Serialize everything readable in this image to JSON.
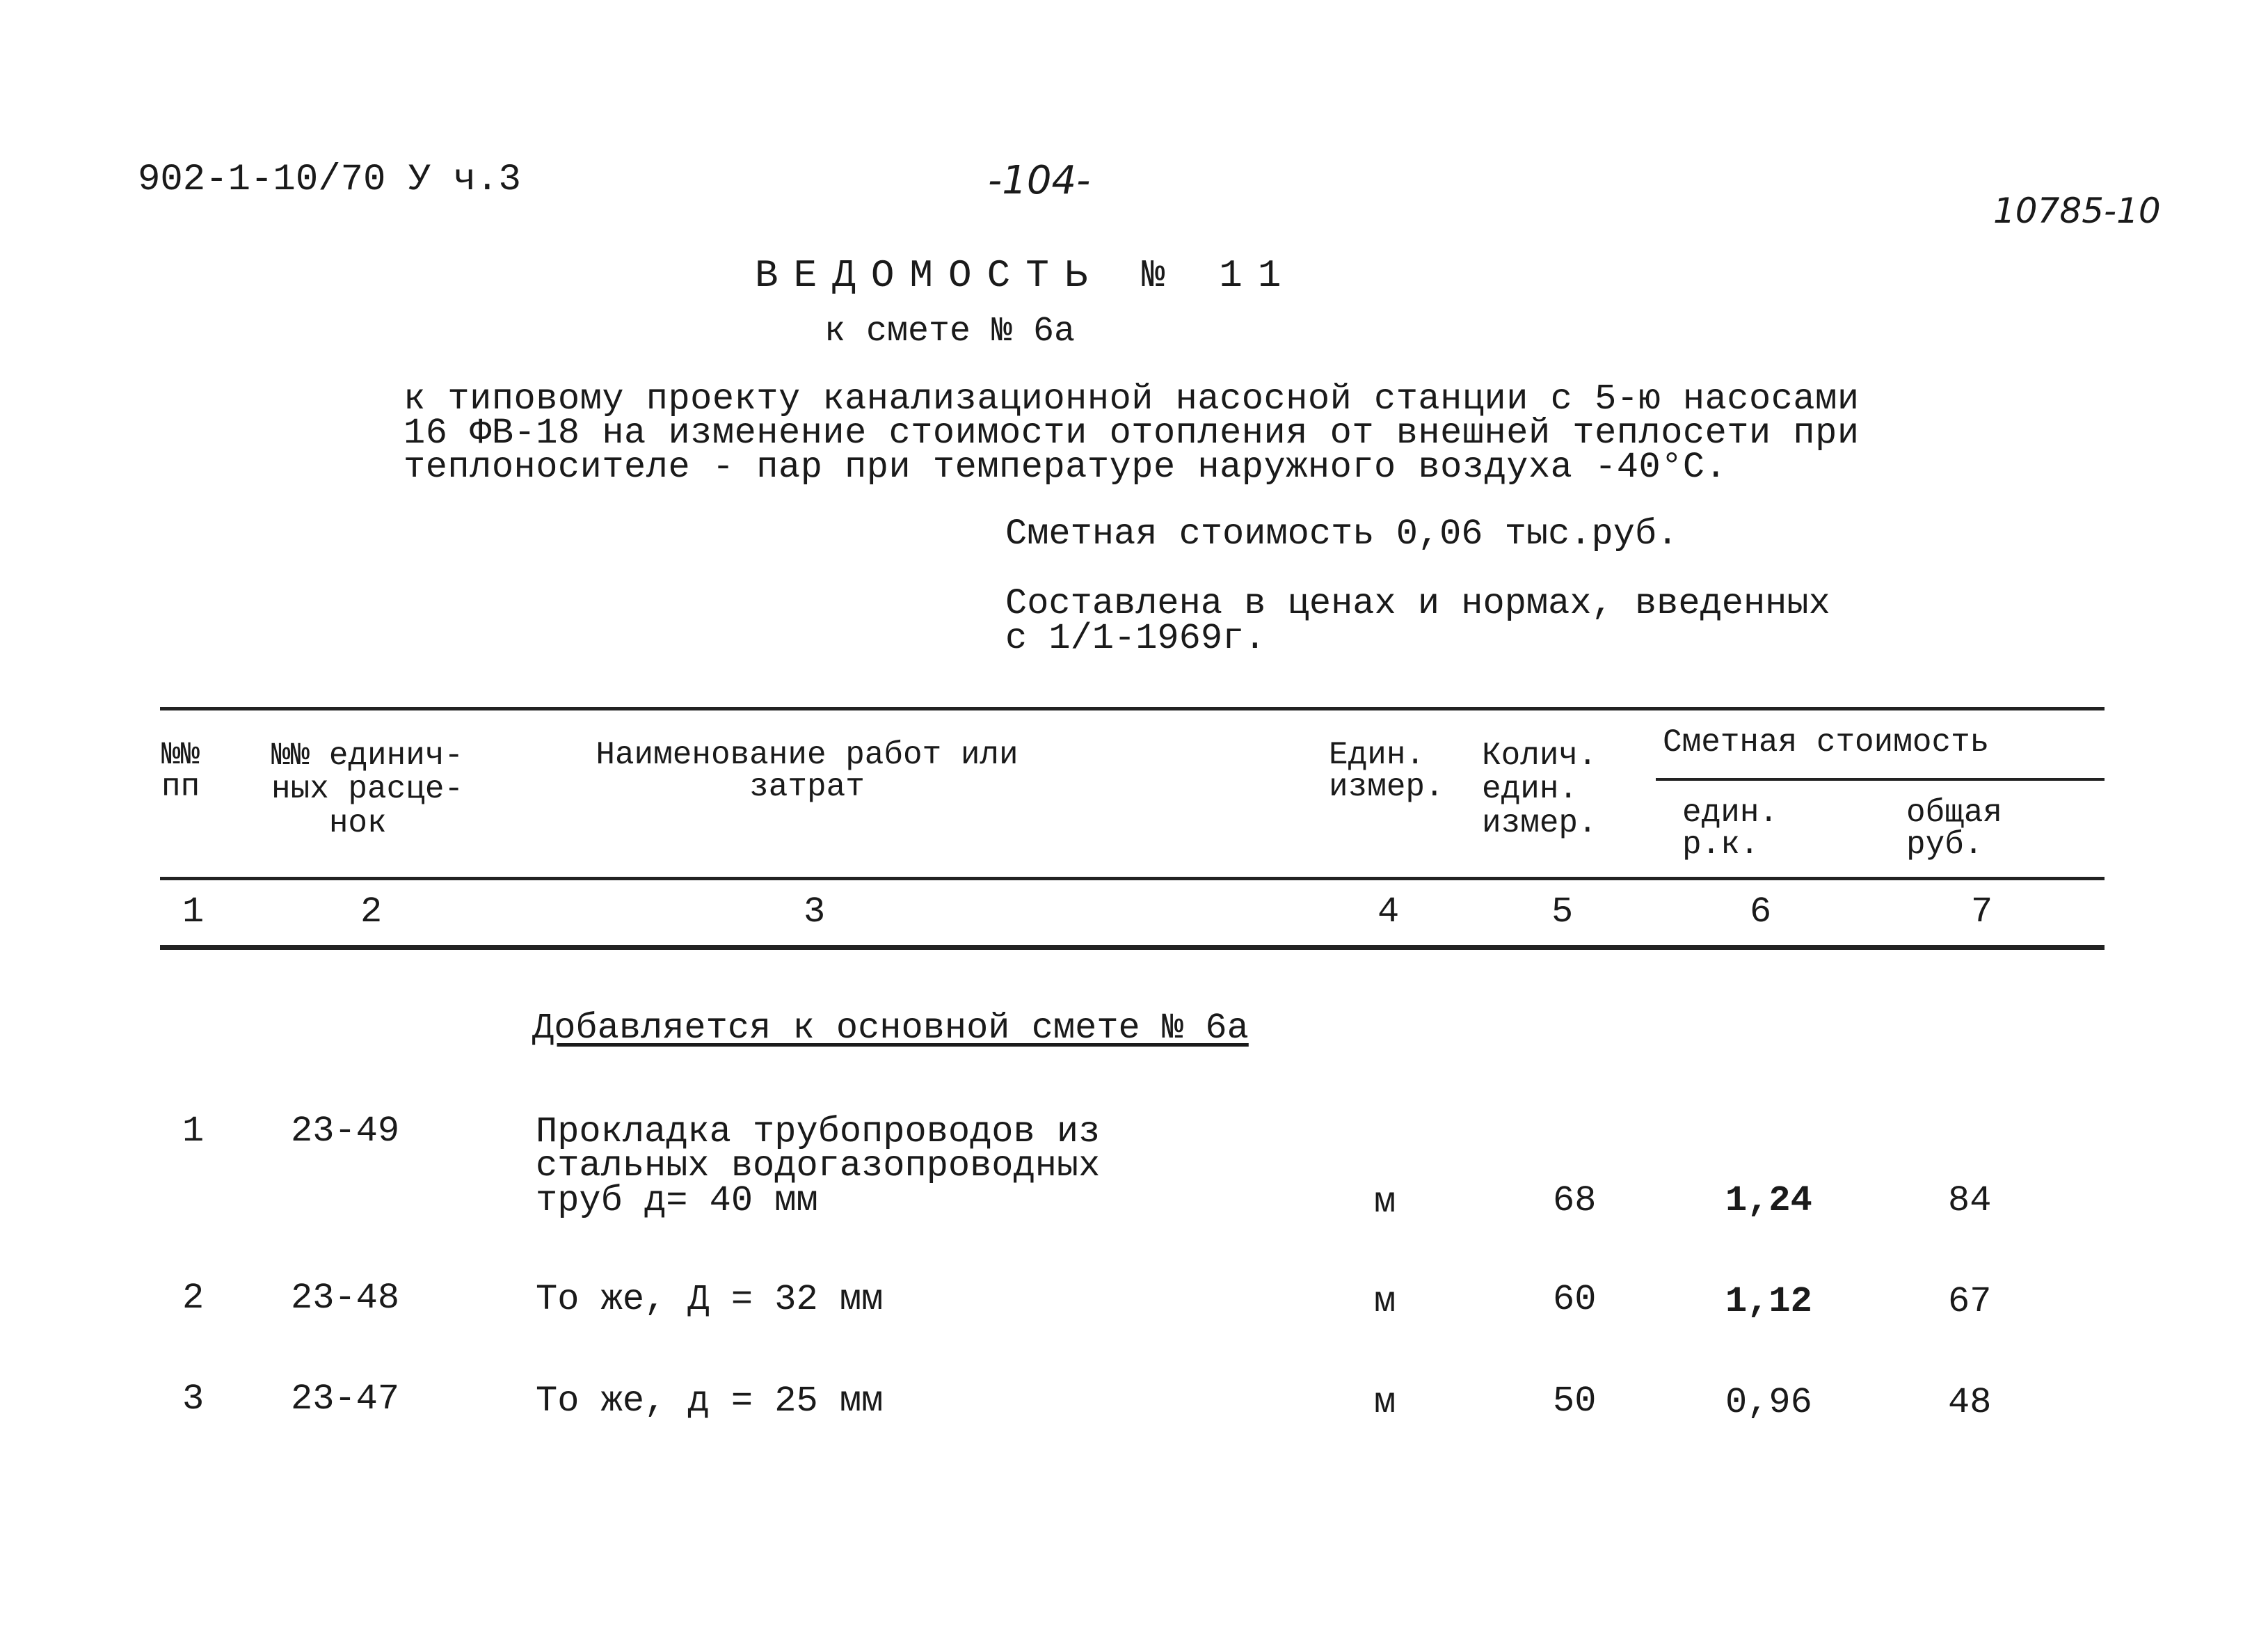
{
  "header": {
    "doc_code": "902-1-10/70 У ч.3",
    "page_number": "-104-",
    "archive_number": "10785-10"
  },
  "title": "ВЕДОМОСТЬ № 11",
  "subtitle": "к смете № 6а",
  "description": [
    "к типовому проекту канализационной насосной станции с 5-ю насосами",
    "16 ФВ-18 на изменение стоимости отопления от внешней теплосети при",
    "теплоносителе - пар при температуре наружного воздуха -40°С."
  ],
  "estimated_cost": "Сметная стоимость 0,06 тыс.руб.",
  "prices_note": [
    "Составлена в ценах и нормах, введенных",
    "с 1/1-1969г."
  ],
  "table": {
    "headers": {
      "col1": [
        "№№",
        "пп"
      ],
      "col2": [
        "№№ единич-",
        "ных расце-",
        "нок"
      ],
      "col3": [
        "Наименование работ или",
        "затрат"
      ],
      "col4": [
        "Един.",
        "измер."
      ],
      "col5": [
        "Колич.",
        "един.",
        "измер."
      ],
      "group": "Сметная стоимость",
      "col6": [
        "един.",
        "р.к."
      ],
      "col7": [
        "общая",
        "руб."
      ]
    },
    "column_numbers": [
      "1",
      "2",
      "3",
      "4",
      "5",
      "6",
      "7"
    ],
    "section_heading": "Добавляется к основной смете № 6а",
    "rows": [
      {
        "n": "1",
        "code": "23-49",
        "name": [
          "Прокладка трубопроводов из",
          "стальных водогазопроводных",
          "труб д= 40 мм"
        ],
        "unit": "м",
        "qty": "68",
        "unit_cost": "1,24",
        "total": "84"
      },
      {
        "n": "2",
        "code": "23-48",
        "name": [
          "То же, Д = 32 мм"
        ],
        "unit": "м",
        "qty": "60",
        "unit_cost": "1,12",
        "total": "67"
      },
      {
        "n": "3",
        "code": "23-47",
        "name": [
          "То же, д = 25 мм"
        ],
        "unit": "м",
        "qty": "50",
        "unit_cost": "0,96",
        "total": "48"
      }
    ]
  }
}
